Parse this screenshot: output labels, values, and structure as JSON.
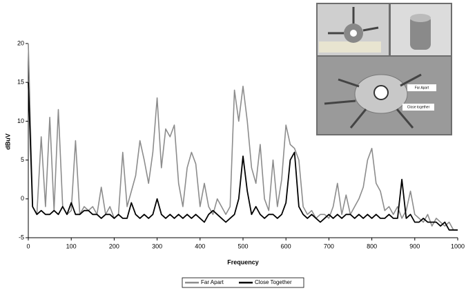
{
  "chart_data": {
    "type": "line",
    "x_label": "Frequency",
    "y_label": "dBuV",
    "x": [
      0,
      10,
      20,
      30,
      40,
      50,
      60,
      70,
      80,
      90,
      100,
      110,
      120,
      130,
      140,
      150,
      160,
      170,
      180,
      190,
      200,
      210,
      220,
      230,
      240,
      250,
      260,
      270,
      280,
      290,
      300,
      310,
      320,
      330,
      340,
      350,
      360,
      370,
      380,
      390,
      400,
      410,
      420,
      430,
      440,
      450,
      460,
      470,
      480,
      490,
      500,
      510,
      520,
      530,
      540,
      550,
      560,
      570,
      580,
      590,
      600,
      610,
      620,
      630,
      640,
      650,
      660,
      670,
      680,
      690,
      700,
      710,
      720,
      730,
      740,
      750,
      760,
      770,
      780,
      790,
      800,
      810,
      820,
      830,
      840,
      850,
      860,
      870,
      880,
      890,
      900,
      910,
      920,
      930,
      940,
      950,
      960,
      970,
      980,
      990,
      1000
    ],
    "series": [
      {
        "name": "Far Apart",
        "color": "#8c8c8c",
        "values": [
          20,
          -1,
          -2,
          8,
          -1,
          10.5,
          -1.5,
          11.5,
          -1,
          -2,
          -1.5,
          7.5,
          -2,
          -1,
          -1.5,
          -1,
          -2,
          1.5,
          -2,
          -1,
          -2.5,
          -2,
          6,
          -1,
          1,
          3,
          7.5,
          5,
          2,
          6,
          13,
          4,
          9,
          8,
          9.5,
          2,
          -1,
          4,
          6,
          4.5,
          -1,
          2,
          -1,
          -2,
          0,
          -1,
          -2,
          -1,
          14,
          10,
          14.5,
          10,
          4,
          2,
          7,
          0,
          -1.5,
          5,
          -1,
          2.5,
          9.5,
          7,
          6.5,
          5,
          -1,
          -2,
          -1.5,
          -2.5,
          -2,
          -2,
          -2.5,
          -1,
          2,
          -2,
          0.5,
          -2,
          -1,
          0,
          1.5,
          5,
          6.5,
          2,
          1,
          -1.5,
          -1,
          -2,
          -1,
          -2.5,
          -1.5,
          1,
          -2,
          -2.5,
          -3,
          -2,
          -3.5,
          -2.5,
          -3,
          -3.5,
          -3,
          -4,
          -4
        ]
      },
      {
        "name": "Close Together",
        "color": "#000000",
        "values": [
          15,
          -1,
          -2,
          -1.5,
          -2,
          -2,
          -1.5,
          -2,
          -1,
          -2,
          -0.5,
          -2,
          -2,
          -1.5,
          -1.5,
          -2,
          -2,
          -2.5,
          -2,
          -2,
          -2.5,
          -2,
          -2.5,
          -2.5,
          -0.5,
          -2,
          -2.5,
          -2,
          -2.5,
          -2,
          0,
          -2,
          -2.5,
          -2,
          -2.5,
          -2,
          -2.5,
          -2,
          -2.5,
          -2,
          -2.5,
          -3,
          -2,
          -1.5,
          -2,
          -2.5,
          -3,
          -2.5,
          -2,
          0,
          5.5,
          1,
          -2,
          -1,
          -2,
          -2.5,
          -2,
          -2,
          -2.5,
          -2,
          -0.5,
          5,
          6,
          -1,
          -2,
          -2.5,
          -2,
          -2.5,
          -3,
          -2.5,
          -2,
          -2.5,
          -2,
          -2.5,
          -2,
          -2,
          -2.5,
          -2,
          -2.5,
          -2,
          -2.5,
          -2,
          -2.5,
          -2.5,
          -2,
          -2.5,
          -2.5,
          2.5,
          -2.5,
          -2,
          -3,
          -3,
          -2.5,
          -3,
          -3,
          -3,
          -3.5,
          -3,
          -4,
          -4,
          -4
        ]
      }
    ],
    "xlim": [
      0,
      1000
    ],
    "xticks": [
      0,
      100,
      200,
      300,
      400,
      500,
      600,
      700,
      800,
      900,
      1000
    ],
    "ylim": [
      -5,
      20
    ],
    "yticks": [
      -5,
      0,
      5,
      10,
      15,
      20
    ],
    "grid": false
  },
  "inset_labels": [
    "Far Apart",
    "Close together"
  ]
}
